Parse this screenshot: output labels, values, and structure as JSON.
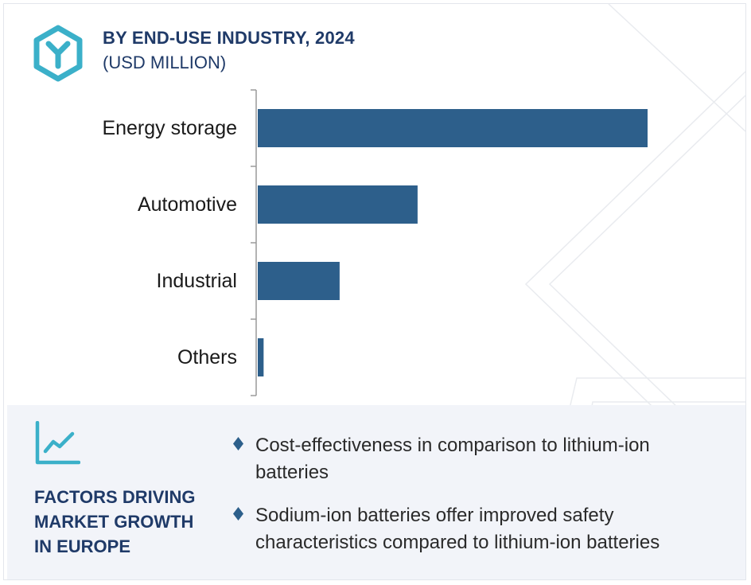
{
  "header": {
    "title": "BY END-USE INDUSTRY, 2024",
    "subtitle": "(USD MILLION)"
  },
  "icons": {
    "logo": "hexagon-y-logo-icon",
    "trend": "line-chart-trend-icon",
    "bullet": "diamond-bullet-icon"
  },
  "colors": {
    "bar": "#2d5f8b",
    "title": "#1f3a68",
    "accent": "#3bb0c9",
    "panel_bg": "#f2f4f9"
  },
  "chart_data": {
    "type": "bar",
    "orientation": "horizontal",
    "categories": [
      "Energy storage",
      "Automotive",
      "Industrial",
      "Others"
    ],
    "values": [
      100,
      41,
      21,
      1.5
    ],
    "title": "BY END-USE INDUSTRY, 2024",
    "xlabel": "",
    "ylabel": "",
    "xlim": [
      0,
      100
    ],
    "grid": false,
    "legend": "none"
  },
  "factors": {
    "heading": [
      "FACTORS DRIVING",
      "MARKET GROWTH",
      "IN EUROPE"
    ],
    "items": [
      "Cost-effectiveness in comparison to lithium-ion batteries",
      "Sodium-ion batteries offer improved safety characteristics compared to lithium-ion batteries"
    ]
  }
}
